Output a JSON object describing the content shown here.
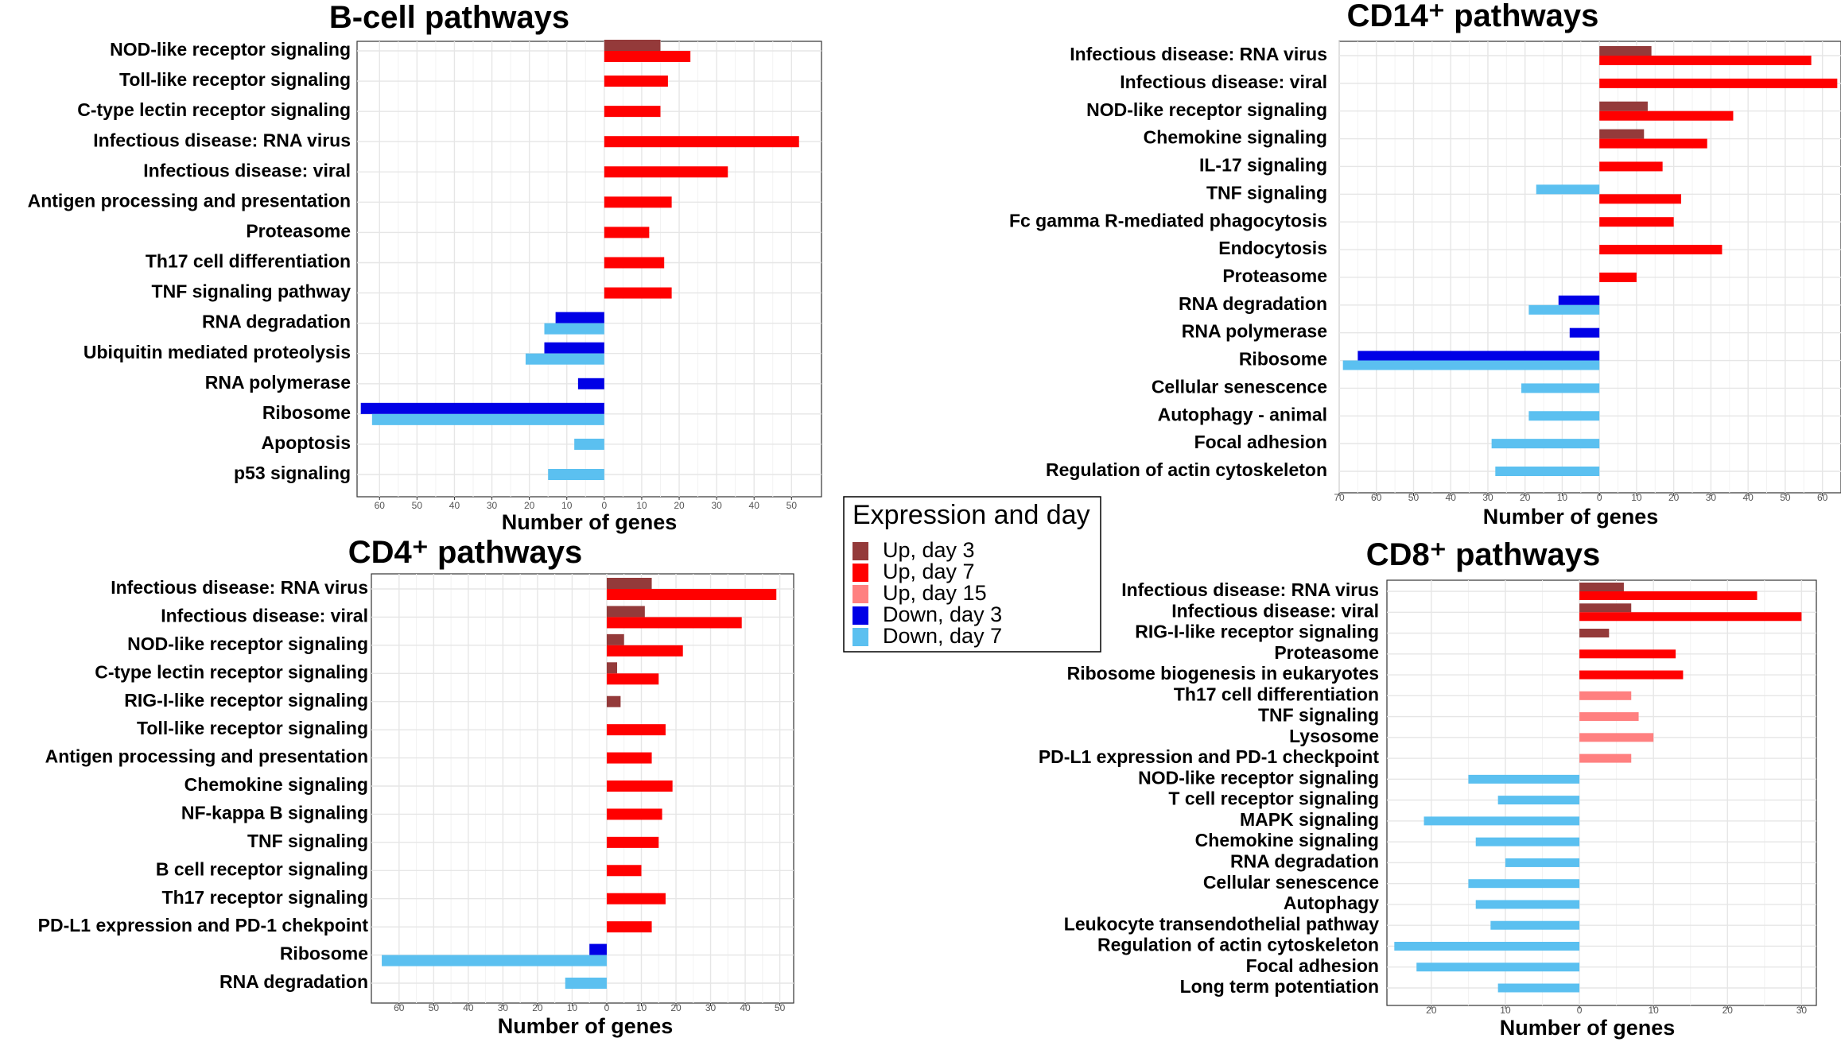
{
  "colors": {
    "up_day3": "#943a3a",
    "up_day7": "#ff0000",
    "up_day15": "#ff8080",
    "down_day3": "#0000e6",
    "down_day7": "#5bc0f0"
  },
  "legend": {
    "title": "Expression and day",
    "items": [
      {
        "key": "up_day3",
        "label": "Up, day 3"
      },
      {
        "key": "up_day7",
        "label": "Up, day 7"
      },
      {
        "key": "up_day15",
        "label": "Up, day 15"
      },
      {
        "key": "down_day3",
        "label": "Down, day 3"
      },
      {
        "key": "down_day7",
        "label": "Down, day 7"
      }
    ]
  },
  "chart_data": [
    {
      "type": "bar",
      "orientation": "horizontal",
      "title": "B-cell pathways",
      "xlabel": "Number of genes",
      "xlim": [
        -66,
        58
      ],
      "tick_labels": [
        "60",
        "50",
        "40",
        "30",
        "20",
        "10",
        "0",
        "10",
        "20",
        "30",
        "40",
        "50"
      ],
      "categories": [
        {
          "label": "NOD-like receptor signaling",
          "bars": [
            {
              "series": "up_day3",
              "value": 15
            },
            {
              "series": "up_day7",
              "value": 23
            }
          ]
        },
        {
          "label": "Toll-like receptor signaling",
          "bars": [
            {
              "series": "up_day7",
              "value": 17
            }
          ]
        },
        {
          "label": "C-type lectin receptor signaling",
          "bars": [
            {
              "series": "up_day7",
              "value": 15
            }
          ]
        },
        {
          "label": "Infectious disease: RNA virus",
          "bars": [
            {
              "series": "up_day7",
              "value": 52
            }
          ]
        },
        {
          "label": "Infectious disease: viral",
          "bars": [
            {
              "series": "up_day7",
              "value": 33
            }
          ]
        },
        {
          "label": "Antigen processing and presentation",
          "bars": [
            {
              "series": "up_day7",
              "value": 18
            }
          ]
        },
        {
          "label": "Proteasome",
          "bars": [
            {
              "series": "up_day7",
              "value": 12
            }
          ]
        },
        {
          "label": "Th17 cell differentiation",
          "bars": [
            {
              "series": "up_day7",
              "value": 16
            }
          ]
        },
        {
          "label": "TNF signaling pathway",
          "bars": [
            {
              "series": "up_day7",
              "value": 18
            }
          ]
        },
        {
          "label": "RNA degradation",
          "bars": [
            {
              "series": "down_day3",
              "value": -13
            },
            {
              "series": "down_day7",
              "value": -16
            }
          ]
        },
        {
          "label": "Ubiquitin mediated proteolysis",
          "bars": [
            {
              "series": "down_day3",
              "value": -16
            },
            {
              "series": "down_day7",
              "value": -21
            }
          ]
        },
        {
          "label": "RNA polymerase",
          "bars": [
            {
              "series": "down_day3",
              "value": -7
            }
          ]
        },
        {
          "label": "Ribosome",
          "bars": [
            {
              "series": "down_day3",
              "value": -65
            },
            {
              "series": "down_day7",
              "value": -62
            }
          ]
        },
        {
          "label": "Apoptosis",
          "bars": [
            {
              "series": "down_day7",
              "value": -8
            }
          ]
        },
        {
          "label": "p53 signaling",
          "bars": [
            {
              "series": "down_day7",
              "value": -15
            }
          ]
        }
      ]
    },
    {
      "type": "bar",
      "orientation": "horizontal",
      "title": "CD14⁺ pathways",
      "xlabel": "Number of genes",
      "xlim": [
        -70,
        65
      ],
      "tick_labels": [
        "70",
        "60",
        "50",
        "40",
        "30",
        "20",
        "10",
        "0",
        "10",
        "20",
        "30",
        "40",
        "50",
        "60"
      ],
      "categories": [
        {
          "label": "Infectious disease: RNA virus",
          "bars": [
            {
              "series": "up_day3",
              "value": 14
            },
            {
              "series": "up_day7",
              "value": 57
            }
          ]
        },
        {
          "label": "Infectious disease: viral",
          "bars": [
            {
              "series": "up_day7",
              "value": 64
            }
          ]
        },
        {
          "label": "NOD-like receptor signaling",
          "bars": [
            {
              "series": "up_day3",
              "value": 13
            },
            {
              "series": "up_day7",
              "value": 36
            }
          ]
        },
        {
          "label": "Chemokine signaling",
          "bars": [
            {
              "series": "up_day3",
              "value": 12
            },
            {
              "series": "up_day7",
              "value": 29
            }
          ]
        },
        {
          "label": "IL-17 signaling",
          "bars": [
            {
              "series": "up_day7",
              "value": 17
            }
          ]
        },
        {
          "label": "TNF signaling",
          "bars": [
            {
              "series": "down_day7",
              "value": -17
            },
            {
              "series": "up_day7",
              "value": 22
            }
          ]
        },
        {
          "label": "Fc gamma R-mediated phagocytosis",
          "bars": [
            {
              "series": "up_day7",
              "value": 20
            }
          ]
        },
        {
          "label": "Endocytosis",
          "bars": [
            {
              "series": "up_day7",
              "value": 33
            }
          ]
        },
        {
          "label": "Proteasome",
          "bars": [
            {
              "series": "up_day7",
              "value": 10
            }
          ]
        },
        {
          "label": "RNA degradation",
          "bars": [
            {
              "series": "down_day3",
              "value": -11
            },
            {
              "series": "down_day7",
              "value": -19
            }
          ]
        },
        {
          "label": "RNA polymerase",
          "bars": [
            {
              "series": "down_day3",
              "value": -8
            }
          ]
        },
        {
          "label": "Ribosome",
          "bars": [
            {
              "series": "down_day3",
              "value": -65
            },
            {
              "series": "down_day7",
              "value": -69
            }
          ]
        },
        {
          "label": "Cellular senescence",
          "bars": [
            {
              "series": "down_day7",
              "value": -21
            }
          ]
        },
        {
          "label": "Autophagy - animal",
          "bars": [
            {
              "series": "down_day7",
              "value": -19
            }
          ]
        },
        {
          "label": "Focal adhesion",
          "bars": [
            {
              "series": "down_day7",
              "value": -29
            }
          ]
        },
        {
          "label": "Regulation of actin cytoskeleton",
          "bars": [
            {
              "series": "down_day7",
              "value": -28
            }
          ]
        }
      ]
    },
    {
      "type": "bar",
      "orientation": "horizontal",
      "title": "CD4⁺ pathways",
      "xlabel": "Number of genes",
      "xlim": [
        -68,
        54
      ],
      "tick_labels": [
        "60",
        "50",
        "40",
        "30",
        "20",
        "10",
        "0",
        "10",
        "20",
        "30",
        "40",
        "50"
      ],
      "categories": [
        {
          "label": "Infectious disease: RNA virus",
          "bars": [
            {
              "series": "up_day3",
              "value": 13
            },
            {
              "series": "up_day7",
              "value": 49
            }
          ]
        },
        {
          "label": "Infectious disease: viral",
          "bars": [
            {
              "series": "up_day3",
              "value": 11
            },
            {
              "series": "up_day7",
              "value": 39
            }
          ]
        },
        {
          "label": "NOD-like receptor signaling",
          "bars": [
            {
              "series": "up_day3",
              "value": 5
            },
            {
              "series": "up_day7",
              "value": 22
            }
          ]
        },
        {
          "label": "C-type lectin receptor signaling",
          "bars": [
            {
              "series": "up_day3",
              "value": 3
            },
            {
              "series": "up_day7",
              "value": 15
            }
          ]
        },
        {
          "label": "RIG-I-like receptor signaling",
          "bars": [
            {
              "series": "up_day3",
              "value": 4
            }
          ]
        },
        {
          "label": "Toll-like receptor signaling",
          "bars": [
            {
              "series": "up_day7",
              "value": 17
            }
          ]
        },
        {
          "label": "Antigen processing and presentation",
          "bars": [
            {
              "series": "up_day7",
              "value": 13
            }
          ]
        },
        {
          "label": "Chemokine signaling",
          "bars": [
            {
              "series": "up_day7",
              "value": 19
            }
          ]
        },
        {
          "label": "NF-kappa B signaling",
          "bars": [
            {
              "series": "up_day7",
              "value": 16
            }
          ]
        },
        {
          "label": "TNF signaling",
          "bars": [
            {
              "series": "up_day7",
              "value": 15
            }
          ]
        },
        {
          "label": "B cell receptor signaling",
          "bars": [
            {
              "series": "up_day7",
              "value": 10
            }
          ]
        },
        {
          "label": "Th17 receptor signaling",
          "bars": [
            {
              "series": "up_day7",
              "value": 17
            }
          ]
        },
        {
          "label": "PD-L1 expression and PD-1 chekpoint",
          "bars": [
            {
              "series": "up_day7",
              "value": 13
            }
          ]
        },
        {
          "label": "Ribosome",
          "bars": [
            {
              "series": "down_day3",
              "value": -5
            },
            {
              "series": "down_day7",
              "value": -65
            }
          ]
        },
        {
          "label": "RNA degradation",
          "bars": [
            {
              "series": "down_day7",
              "value": -12
            }
          ]
        }
      ]
    },
    {
      "type": "bar",
      "orientation": "horizontal",
      "title": "CD8⁺ pathways",
      "xlabel": "Number of genes",
      "xlim": [
        -26,
        32
      ],
      "tick_labels": [
        "20",
        "10",
        "0",
        "10",
        "20",
        "30"
      ],
      "categories": [
        {
          "label": "Infectious disease: RNA virus",
          "bars": [
            {
              "series": "up_day3",
              "value": 6
            },
            {
              "series": "up_day7",
              "value": 24
            }
          ]
        },
        {
          "label": "Infectious disease: viral",
          "bars": [
            {
              "series": "up_day3",
              "value": 7
            },
            {
              "series": "up_day7",
              "value": 30
            }
          ]
        },
        {
          "label": "RIG-I-like receptor signaling",
          "bars": [
            {
              "series": "up_day3",
              "value": 4
            }
          ]
        },
        {
          "label": "Proteasome",
          "bars": [
            {
              "series": "up_day7",
              "value": 13
            }
          ]
        },
        {
          "label": "Ribosome biogenesis in eukaryotes",
          "bars": [
            {
              "series": "up_day7",
              "value": 14
            }
          ]
        },
        {
          "label": "Th17 cell differentiation",
          "bars": [
            {
              "series": "up_day15",
              "value": 7
            }
          ]
        },
        {
          "label": "TNF signaling",
          "bars": [
            {
              "series": "up_day15",
              "value": 8
            }
          ]
        },
        {
          "label": "Lysosome",
          "bars": [
            {
              "series": "up_day15",
              "value": 10
            }
          ]
        },
        {
          "label": "PD-L1 expression and PD-1 checkpoint",
          "bars": [
            {
              "series": "up_day15",
              "value": 7
            }
          ]
        },
        {
          "label": "NOD-like receptor signaling",
          "bars": [
            {
              "series": "down_day7",
              "value": -15
            }
          ]
        },
        {
          "label": "T cell receptor signaling",
          "bars": [
            {
              "series": "down_day7",
              "value": -11
            }
          ]
        },
        {
          "label": "MAPK signaling",
          "bars": [
            {
              "series": "down_day7",
              "value": -21
            }
          ]
        },
        {
          "label": "Chemokine signaling",
          "bars": [
            {
              "series": "down_day7",
              "value": -14
            }
          ]
        },
        {
          "label": "RNA degradation",
          "bars": [
            {
              "series": "down_day7",
              "value": -10
            }
          ]
        },
        {
          "label": "Cellular senescence",
          "bars": [
            {
              "series": "down_day7",
              "value": -15
            }
          ]
        },
        {
          "label": "Autophagy",
          "bars": [
            {
              "series": "down_day7",
              "value": -14
            }
          ]
        },
        {
          "label": "Leukocyte transendothelial pathway",
          "bars": [
            {
              "series": "down_day7",
              "value": -12
            }
          ]
        },
        {
          "label": "Regulation of actin cytoskeleton",
          "bars": [
            {
              "series": "down_day7",
              "value": -25
            }
          ]
        },
        {
          "label": "Focal adhesion",
          "bars": [
            {
              "series": "down_day7",
              "value": -22
            }
          ]
        },
        {
          "label": "Long term potentiation",
          "bars": [
            {
              "series": "down_day7",
              "value": -11
            }
          ]
        }
      ]
    }
  ]
}
